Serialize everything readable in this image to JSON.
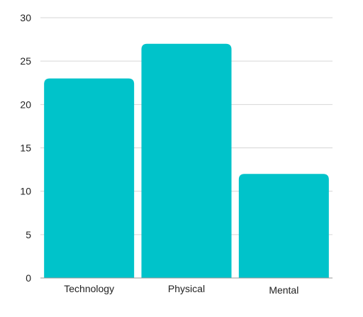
{
  "chart_data": {
    "type": "bar",
    "title": "",
    "xlabel": "",
    "ylabel": "",
    "categories": [
      "Technology",
      "Physical",
      "Mental"
    ],
    "values": [
      23,
      27,
      12
    ],
    "ylim": [
      0,
      30
    ],
    "yticks": [
      0,
      5,
      10,
      15,
      20,
      25,
      30
    ],
    "grid": true,
    "legend": "none",
    "bar_color": "#00C3CA"
  }
}
